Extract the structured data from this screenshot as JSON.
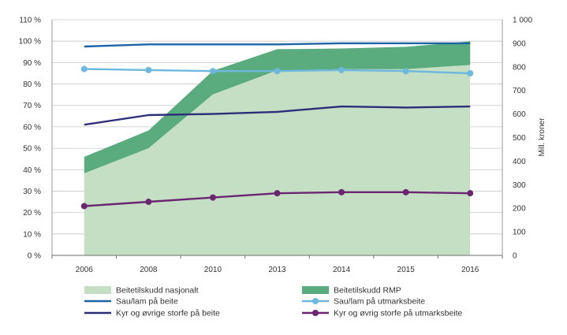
{
  "chart_data": {
    "type": "area+line",
    "categories": [
      "2006",
      "2008",
      "2010",
      "2013",
      "2014",
      "2015",
      "2016"
    ],
    "left_axis": {
      "ticks": [
        "0 %",
        "10 %",
        "20 %",
        "30 %",
        "40 %",
        "50 %",
        "60 %",
        "70 %",
        "80 %",
        "90 %",
        "100 %",
        "110 %"
      ],
      "ylim": [
        0,
        110
      ],
      "unit": "%"
    },
    "right_axis": {
      "label": "Mill. kroner",
      "ticks": [
        "0",
        "100",
        "200",
        "300",
        "400",
        "500",
        "600",
        "700",
        "800",
        "900",
        "1 000"
      ],
      "ylim": [
        0,
        1000
      ]
    },
    "area_series": [
      {
        "name": "Beitetilskudd nasjonalt",
        "axis": "right",
        "color": "#c5dfc4",
        "values": [
          348,
          455,
          683,
          785,
          790,
          790,
          808
        ]
      },
      {
        "name": "Beitetilskudd RMP",
        "axis": "right",
        "color": "#5aab7e",
        "values": [
          70,
          75,
          100,
          90,
          88,
          95,
          100
        ]
      }
    ],
    "line_series": [
      {
        "name": "Sau/lam på beite",
        "axis": "left",
        "color": "#1c64a6",
        "markers": false,
        "values": [
          97.5,
          98.5,
          98.5,
          98.5,
          99,
          99,
          99
        ]
      },
      {
        "name": "Sau/lam på utmarksbeite",
        "axis": "left",
        "color": "#6db8dc",
        "markers": true,
        "values": [
          87,
          86.5,
          86,
          86,
          86.5,
          86,
          85
        ]
      },
      {
        "name": "Kyr og øvrige storfe på beite",
        "axis": "left",
        "color": "#2e2e78",
        "markers": false,
        "values": [
          61,
          65.5,
          66,
          67,
          69.5,
          69,
          69.5
        ]
      },
      {
        "name": "Kyr og øvrig storfe på utmarksbeite",
        "axis": "left",
        "color": "#6b2670",
        "markers": true,
        "values": [
          23,
          25,
          27,
          29,
          29.5,
          29.5,
          29
        ]
      }
    ],
    "legend_position": "bottom",
    "grid": true
  }
}
